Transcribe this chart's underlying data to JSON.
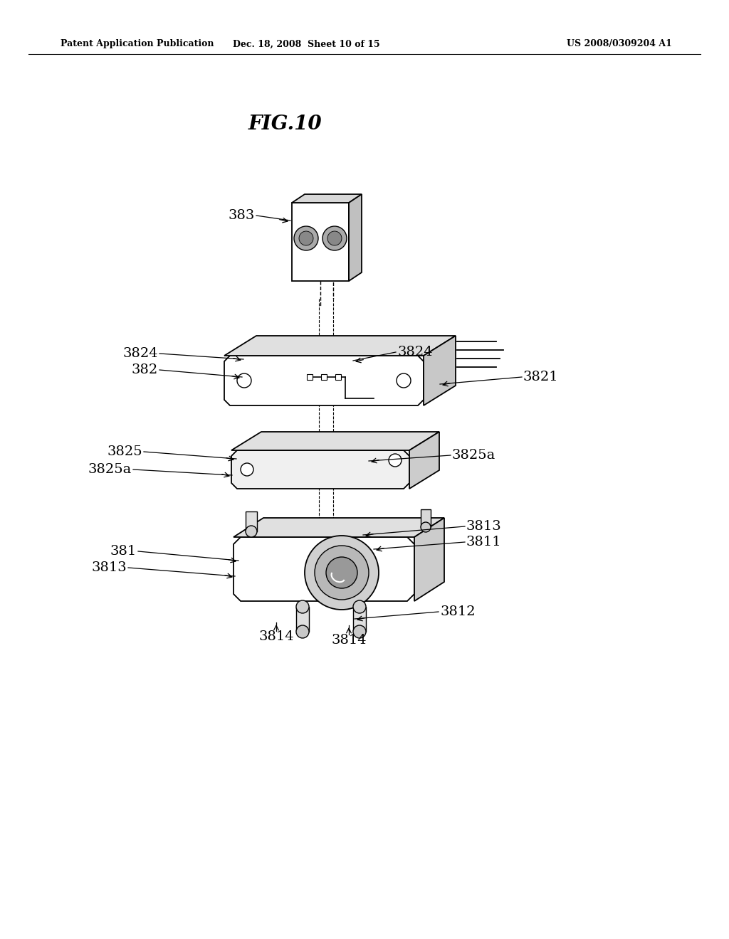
{
  "background_color": "#ffffff",
  "title": "FIG.10",
  "header_left": "Patent Application Publication",
  "header_center": "Dec. 18, 2008  Sheet 10 of 15",
  "header_right": "US 2008/0309204 A1",
  "fig_width": 10.24,
  "fig_height": 13.2,
  "dpi": 100
}
